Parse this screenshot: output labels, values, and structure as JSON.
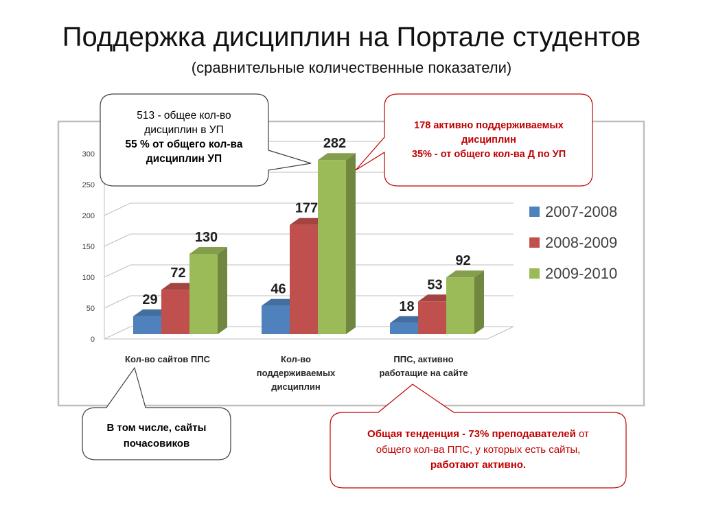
{
  "slide": {
    "title": "Поддержка дисциплин на Портале студентов",
    "subtitle": "(сравнительные количественные показатели)"
  },
  "callouts": {
    "top_left": {
      "line1": "513  - общее кол-во",
      "line2": "дисциплин в УП",
      "line3": "55 % от общего кол-ва",
      "line4": "дисциплин УП"
    },
    "top_right": {
      "line1": "178 активно поддерживаемых",
      "line2": "дисциплин",
      "line3": "35% - от общего кол-ва Д по УП"
    },
    "bottom_left": {
      "line1": "В том числе, сайты",
      "line2": "почасовиков"
    },
    "bottom_right": {
      "line1_bold": "Общая тенденция - 73% преподавателей",
      "line1_rest": " от",
      "line2": "общего кол-ва ППС, у которых есть сайты,",
      "line3": "работают активно."
    }
  },
  "colors": {
    "series_2007": "#4f81bd",
    "series_2008": "#c0504d",
    "series_2009": "#9bbb59",
    "callout_red_border": "#c00000",
    "callout_red_text": "#c00000"
  },
  "chart_data": {
    "type": "bar",
    "view": "3d-clustered-column",
    "categories": [
      [
        "Кол-во сайтов ППС"
      ],
      [
        "Кол-во",
        "поддерживаемых",
        "дисциплин"
      ],
      [
        "ППС, активно",
        "работащие на сайте"
      ]
    ],
    "series": [
      {
        "name": "2007-2008",
        "values": [
          29,
          46,
          18
        ]
      },
      {
        "name": "2008-2009",
        "values": [
          72,
          177,
          53
        ]
      },
      {
        "name": "2009-2010",
        "values": [
          130,
          282,
          92
        ]
      }
    ],
    "y_ticks": [
      "0",
      "50",
      "100",
      "150",
      "200",
      "250",
      "300"
    ],
    "ylim": [
      0,
      300
    ],
    "grid": true,
    "legend_position": "right",
    "data_labels": true
  }
}
